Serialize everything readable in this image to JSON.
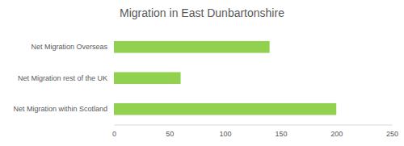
{
  "chart_data": {
    "type": "bar",
    "orientation": "horizontal",
    "title": "Migration in East Dunbartonshire",
    "categories": [
      "Net Migration Overseas",
      "Net Migration rest of the UK",
      "Net Migration within Scotland"
    ],
    "values": [
      140,
      60,
      200
    ],
    "color": "#92d050",
    "xlim": [
      0,
      250
    ],
    "xticks": [
      0,
      50,
      100,
      150,
      200,
      250
    ],
    "grid": false
  }
}
